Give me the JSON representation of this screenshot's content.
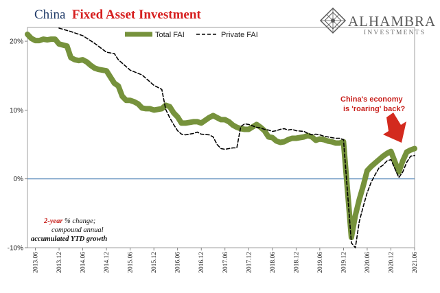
{
  "chart_data": {
    "type": "line",
    "title_part1": "China",
    "title_part2": "Fixed Asset Investment",
    "ylim": [
      -10,
      22
    ],
    "yticks": [
      "20%",
      "10%",
      "0%",
      "-10%"
    ],
    "ytick_values": [
      20,
      10,
      0,
      -10
    ],
    "x_labels": [
      "2013.06",
      "2013.12",
      "2014.06",
      "2014.12",
      "2015.06",
      "2015.12",
      "2016.06",
      "2016.12",
      "2017.06",
      "2017.12",
      "2018.06",
      "2018.12",
      "2019.06",
      "2019.12",
      "2020.06",
      "2020.12",
      "2021.06"
    ],
    "legend": {
      "placement": "top",
      "items": [
        "Total FAI",
        "Private FAI"
      ]
    },
    "series": [
      {
        "name": "Total FAI",
        "color": "#76923c",
        "style": "solid-thick",
        "points": [
          [
            "2013.04",
            21.0
          ],
          [
            "2013.05",
            20.4
          ],
          [
            "2013.06",
            20.1
          ],
          [
            "2013.07",
            20.1
          ],
          [
            "2013.08",
            20.3
          ],
          [
            "2013.09",
            20.2
          ],
          [
            "2013.10",
            20.3
          ],
          [
            "2013.11",
            20.3
          ],
          [
            "2013.12",
            19.6
          ],
          [
            "2014.02",
            19.3
          ],
          [
            "2014.03",
            17.6
          ],
          [
            "2014.04",
            17.3
          ],
          [
            "2014.05",
            17.2
          ],
          [
            "2014.06",
            17.3
          ],
          [
            "2014.07",
            17.0
          ],
          [
            "2014.08",
            16.5
          ],
          [
            "2014.09",
            16.1
          ],
          [
            "2014.10",
            15.9
          ],
          [
            "2014.11",
            15.8
          ],
          [
            "2014.12",
            15.7
          ],
          [
            "2015.02",
            13.9
          ],
          [
            "2015.03",
            13.5
          ],
          [
            "2015.04",
            12.0
          ],
          [
            "2015.05",
            11.4
          ],
          [
            "2015.06",
            11.4
          ],
          [
            "2015.07",
            11.2
          ],
          [
            "2015.08",
            10.9
          ],
          [
            "2015.09",
            10.3
          ],
          [
            "2015.10",
            10.2
          ],
          [
            "2015.11",
            10.2
          ],
          [
            "2015.12",
            10.0
          ],
          [
            "2016.02",
            10.2
          ],
          [
            "2016.03",
            10.7
          ],
          [
            "2016.04",
            10.5
          ],
          [
            "2016.05",
            9.6
          ],
          [
            "2016.06",
            9.0
          ],
          [
            "2016.07",
            8.1
          ],
          [
            "2016.08",
            8.1
          ],
          [
            "2016.09",
            8.2
          ],
          [
            "2016.10",
            8.3
          ],
          [
            "2016.11",
            8.3
          ],
          [
            "2016.12",
            8.1
          ],
          [
            "2017.02",
            8.9
          ],
          [
            "2017.03",
            9.2
          ],
          [
            "2017.04",
            8.9
          ],
          [
            "2017.05",
            8.6
          ],
          [
            "2017.06",
            8.6
          ],
          [
            "2017.07",
            8.3
          ],
          [
            "2017.08",
            7.8
          ],
          [
            "2017.09",
            7.5
          ],
          [
            "2017.10",
            7.3
          ],
          [
            "2017.11",
            7.2
          ],
          [
            "2017.12",
            7.2
          ],
          [
            "2018.02",
            7.9
          ],
          [
            "2018.03",
            7.5
          ],
          [
            "2018.04",
            7.0
          ],
          [
            "2018.05",
            6.1
          ],
          [
            "2018.06",
            6.0
          ],
          [
            "2018.07",
            5.5
          ],
          [
            "2018.08",
            5.3
          ],
          [
            "2018.09",
            5.4
          ],
          [
            "2018.10",
            5.7
          ],
          [
            "2018.11",
            5.9
          ],
          [
            "2018.12",
            5.9
          ],
          [
            "2019.02",
            6.1
          ],
          [
            "2019.03",
            6.3
          ],
          [
            "2019.04",
            6.1
          ],
          [
            "2019.05",
            5.6
          ],
          [
            "2019.06",
            5.8
          ],
          [
            "2019.07",
            5.7
          ],
          [
            "2019.08",
            5.5
          ],
          [
            "2019.09",
            5.4
          ],
          [
            "2019.10",
            5.2
          ],
          [
            "2019.11",
            5.2
          ],
          [
            "2019.12",
            5.4
          ],
          [
            "2020.02",
            -8.5
          ],
          [
            "2020.03",
            -5.3
          ],
          [
            "2020.04",
            -3.0
          ],
          [
            "2020.05",
            -1.0
          ],
          [
            "2020.06",
            1.2
          ],
          [
            "2020.07",
            1.8
          ],
          [
            "2020.08",
            2.3
          ],
          [
            "2020.09",
            2.8
          ],
          [
            "2020.10",
            3.3
          ],
          [
            "2020.11",
            3.7
          ],
          [
            "2020.12",
            4.0
          ],
          [
            "2021.02",
            1.0
          ],
          [
            "2021.03",
            2.6
          ],
          [
            "2021.04",
            3.9
          ],
          [
            "2021.05",
            4.2
          ],
          [
            "2021.06",
            4.4
          ]
        ]
      },
      {
        "name": "Private FAI",
        "color": "#000000",
        "style": "dashed",
        "points": [
          [
            "2013.12",
            21.9
          ],
          [
            "2014.03",
            21.4
          ],
          [
            "2014.06",
            20.8
          ],
          [
            "2014.09",
            19.7
          ],
          [
            "2014.12",
            18.4
          ],
          [
            "2015.02",
            18.2
          ],
          [
            "2015.03",
            17.3
          ],
          [
            "2015.06",
            15.8
          ],
          [
            "2015.09",
            15.1
          ],
          [
            "2015.12",
            13.6
          ],
          [
            "2016.02",
            13.0
          ],
          [
            "2016.03",
            10.1
          ],
          [
            "2016.04",
            8.9
          ],
          [
            "2016.05",
            7.9
          ],
          [
            "2016.06",
            7.0
          ],
          [
            "2016.07",
            6.5
          ],
          [
            "2016.08",
            6.4
          ],
          [
            "2016.09",
            6.5
          ],
          [
            "2016.10",
            6.6
          ],
          [
            "2016.11",
            6.8
          ],
          [
            "2016.12",
            6.5
          ],
          [
            "2017.02",
            6.4
          ],
          [
            "2017.03",
            6.1
          ],
          [
            "2017.04",
            5.0
          ],
          [
            "2017.05",
            4.4
          ],
          [
            "2017.06",
            4.3
          ],
          [
            "2017.07",
            4.4
          ],
          [
            "2017.08",
            4.5
          ],
          [
            "2017.09",
            4.5
          ],
          [
            "2017.10",
            7.6
          ],
          [
            "2017.11",
            8.0
          ],
          [
            "2017.12",
            7.9
          ],
          [
            "2018.02",
            7.5
          ],
          [
            "2018.03",
            7.4
          ],
          [
            "2018.04",
            7.2
          ],
          [
            "2018.05",
            7.1
          ],
          [
            "2018.06",
            6.9
          ],
          [
            "2018.07",
            7.0
          ],
          [
            "2018.08",
            7.2
          ],
          [
            "2018.09",
            7.3
          ],
          [
            "2018.10",
            7.1
          ],
          [
            "2018.11",
            7.2
          ],
          [
            "2018.12",
            7.0
          ],
          [
            "2019.02",
            6.9
          ],
          [
            "2019.03",
            6.6
          ],
          [
            "2019.04",
            6.4
          ],
          [
            "2019.05",
            6.5
          ],
          [
            "2019.06",
            6.4
          ],
          [
            "2019.07",
            6.2
          ],
          [
            "2019.08",
            6.1
          ],
          [
            "2019.09",
            6.0
          ],
          [
            "2019.10",
            5.9
          ],
          [
            "2019.11",
            5.9
          ],
          [
            "2019.12",
            5.7
          ],
          [
            "2020.02",
            -9.3
          ],
          [
            "2020.03",
            -10.0
          ],
          [
            "2020.04",
            -6.2
          ],
          [
            "2020.05",
            -4.0
          ],
          [
            "2020.06",
            -2.0
          ],
          [
            "2020.07",
            -0.5
          ],
          [
            "2020.08",
            0.6
          ],
          [
            "2020.09",
            1.6
          ],
          [
            "2020.10",
            2.0
          ],
          [
            "2020.11",
            2.6
          ],
          [
            "2020.12",
            2.8
          ],
          [
            "2021.02",
            0.2
          ],
          [
            "2021.03",
            1.0
          ],
          [
            "2021.04",
            2.4
          ],
          [
            "2021.05",
            3.3
          ],
          [
            "2021.06",
            3.4
          ]
        ]
      }
    ],
    "annotations": {
      "callout_line1": "China's economy",
      "callout_line2": "is 'roaring' back?",
      "note_line1_red": "2-year",
      "note_line1_rest": " % change;",
      "note_line2": "compound annual",
      "note_line3": "accumulated YTD growth"
    },
    "grid": false,
    "zero_line_color": "#4a7fb5"
  },
  "logo": {
    "name": "ALHAMBRA",
    "sub": "INVESTMENTS"
  }
}
